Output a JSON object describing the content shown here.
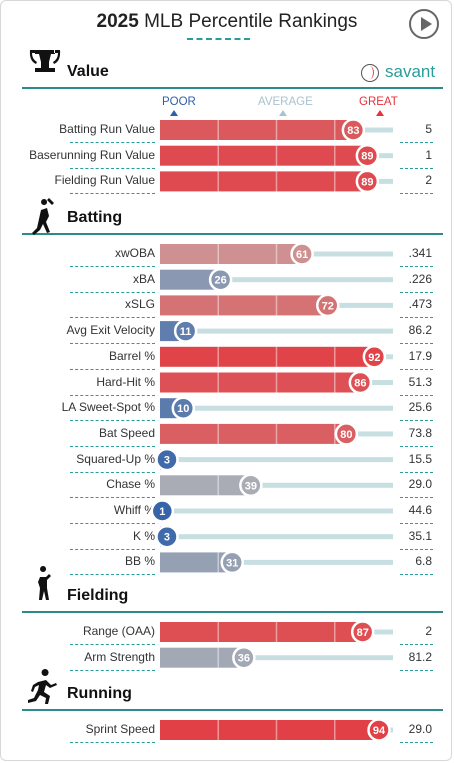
{
  "page": {
    "title_year": "2025",
    "title_rest": "MLB Percentile Rankings",
    "logo_text": "savant"
  },
  "scale": {
    "poor": "POOR",
    "average": "AVERAGE",
    "great": "GREAT"
  },
  "colors": {
    "accent": "#2a9d9a",
    "poor": "#2f5fa8",
    "average": "#c3bcb8",
    "great": "#e4333a",
    "track": "#c7dfe1"
  },
  "chart_data": {
    "type": "bar",
    "title": "2025 MLB Percentile Rankings",
    "xlim": [
      0,
      100
    ],
    "sections": [
      {
        "name": "Value",
        "icon": "trophy-icon",
        "metrics": [
          {
            "label": "Batting Run Value",
            "percentile": 83,
            "value": "5"
          },
          {
            "label": "Baserunning Run Value",
            "percentile": 89,
            "value": "1"
          },
          {
            "label": "Fielding Run Value",
            "percentile": 89,
            "value": "2"
          }
        ]
      },
      {
        "name": "Batting",
        "icon": "batter-icon",
        "metrics": [
          {
            "label": "xwOBA",
            "percentile": 61,
            "value": ".341"
          },
          {
            "label": "xBA",
            "percentile": 26,
            "value": ".226"
          },
          {
            "label": "xSLG",
            "percentile": 72,
            "value": ".473"
          },
          {
            "label": "Avg Exit Velocity",
            "percentile": 11,
            "value": "86.2"
          },
          {
            "label": "Barrel %",
            "percentile": 92,
            "value": "17.9"
          },
          {
            "label": "Hard-Hit %",
            "percentile": 86,
            "value": "51.3"
          },
          {
            "label": "LA Sweet-Spot %",
            "percentile": 10,
            "value": "25.6"
          },
          {
            "label": "Bat Speed",
            "percentile": 80,
            "value": "73.8"
          },
          {
            "label": "Squared-Up %",
            "percentile": 3,
            "value": "15.5"
          },
          {
            "label": "Chase %",
            "percentile": 39,
            "value": "29.0"
          },
          {
            "label": "Whiff %",
            "percentile": 1,
            "value": "44.6"
          },
          {
            "label": "K %",
            "percentile": 3,
            "value": "35.1"
          },
          {
            "label": "BB %",
            "percentile": 31,
            "value": "6.8"
          }
        ]
      },
      {
        "name": "Fielding",
        "icon": "fielder-icon",
        "metrics": [
          {
            "label": "Range (OAA)",
            "percentile": 87,
            "value": "2"
          },
          {
            "label": "Arm Strength",
            "percentile": 36,
            "value": "81.2"
          }
        ]
      },
      {
        "name": "Running",
        "icon": "runner-icon",
        "metrics": [
          {
            "label": "Sprint Speed",
            "percentile": 94,
            "value": "29.0"
          }
        ]
      }
    ]
  }
}
